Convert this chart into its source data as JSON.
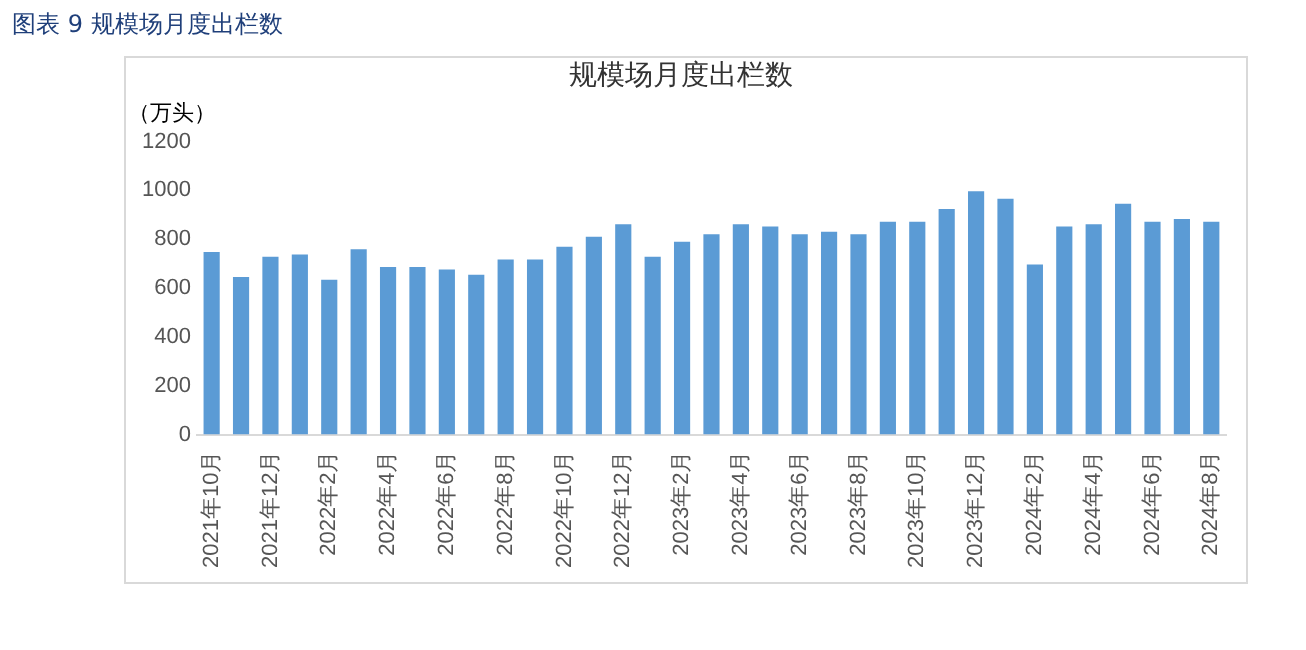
{
  "chart_data": {
    "type": "bar",
    "title": "规模场月度出栏数",
    "ylabel": "（万头）",
    "annotations": [
      "图表 9  规模场月度出栏数"
    ],
    "categories": [
      "2021年10月",
      null,
      "2021年12月",
      null,
      "2022年2月",
      null,
      "2022年4月",
      null,
      "2022年6月",
      null,
      "2022年8月",
      null,
      "2022年10月",
      null,
      "2022年12月",
      null,
      "2023年2月",
      null,
      "2023年4月",
      null,
      "2023年6月",
      null,
      "2023年8月",
      null,
      "2023年10月",
      null,
      "2023年12月",
      null,
      "2024年2月",
      null,
      "2024年4月",
      null,
      "2024年6月",
      null,
      "2024年8月"
    ],
    "values": [
      748,
      645,
      728,
      738,
      634,
      759,
      686,
      686,
      676,
      655,
      717,
      717,
      769,
      810,
      862,
      728,
      790,
      821,
      862,
      852,
      821,
      831,
      821,
      872,
      872,
      924,
      997,
      966,
      697,
      852,
      862,
      945,
      872,
      883,
      872
    ],
    "color": "#5b9bd5",
    "ylim": [
      0,
      1200
    ],
    "yticks": [
      0,
      200,
      400,
      600,
      800,
      1000,
      1200
    ],
    "grid": false,
    "legend": false
  }
}
